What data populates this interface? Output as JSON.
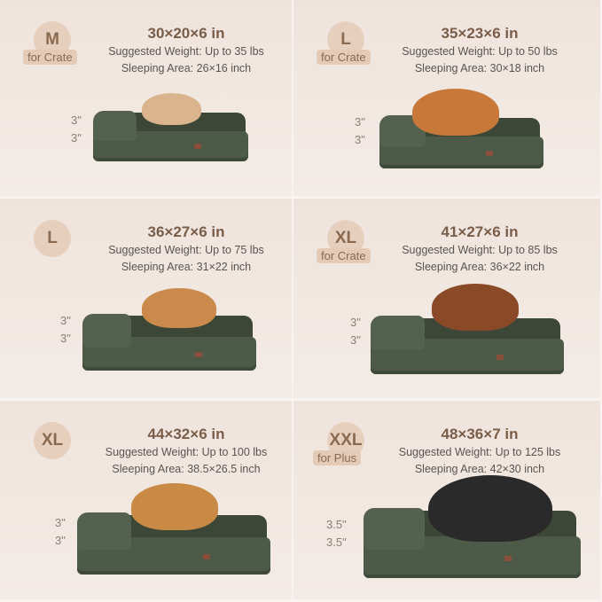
{
  "colors": {
    "title": "#7a5d48",
    "badge": "#e6d0bd",
    "bed": "#4e5a48"
  },
  "products": [
    {
      "size": "M",
      "sub": "for Crate",
      "title": "30×20×6 in",
      "weight": "Suggested Weight: Up to 35 lbs",
      "area": "Sleeping Area: 26×16 inch",
      "dims": [
        "3\"",
        "3\""
      ],
      "dog_color": "#d9b48c"
    },
    {
      "size": "L",
      "sub": "for Crate",
      "title": "35×23×6 in",
      "weight": "Suggested Weight: Up to 50 lbs",
      "area": "Sleeping Area: 30×18 inch",
      "dims": [
        "3\"",
        "3\""
      ],
      "dog_color": "#c8793a"
    },
    {
      "size": "L",
      "sub": "",
      "title": "36×27×6 in",
      "weight": "Suggested Weight: Up to 75 lbs",
      "area": "Sleeping Area: 31×22 inch",
      "dims": [
        "3\"",
        "3\""
      ],
      "dog_color": "#c98a4c"
    },
    {
      "size": "XL",
      "sub": "for Crate",
      "title": "41×27×6 in",
      "weight": "Suggested Weight: Up to 85 lbs",
      "area": "Sleeping Area: 36×22 inch",
      "dims": [
        "3\"",
        "3\""
      ],
      "dog_color": "#8a4a28"
    },
    {
      "size": "XL",
      "sub": "",
      "title": "44×32×6 in",
      "weight": "Suggested Weight: Up to 100 lbs",
      "area": "Sleeping Area: 38.5×26.5 inch",
      "dims": [
        "3\"",
        "3\""
      ],
      "dog_color": "#c98a45"
    },
    {
      "size": "XXL",
      "sub": "for Plus",
      "title": "48×36×7 in",
      "weight": "Suggested Weight: Up to 125 lbs",
      "area": "Sleeping Area: 42×30 inch",
      "dims": [
        "3.5\"",
        "3.5\""
      ],
      "dog_color": "#2a2a2a"
    }
  ]
}
